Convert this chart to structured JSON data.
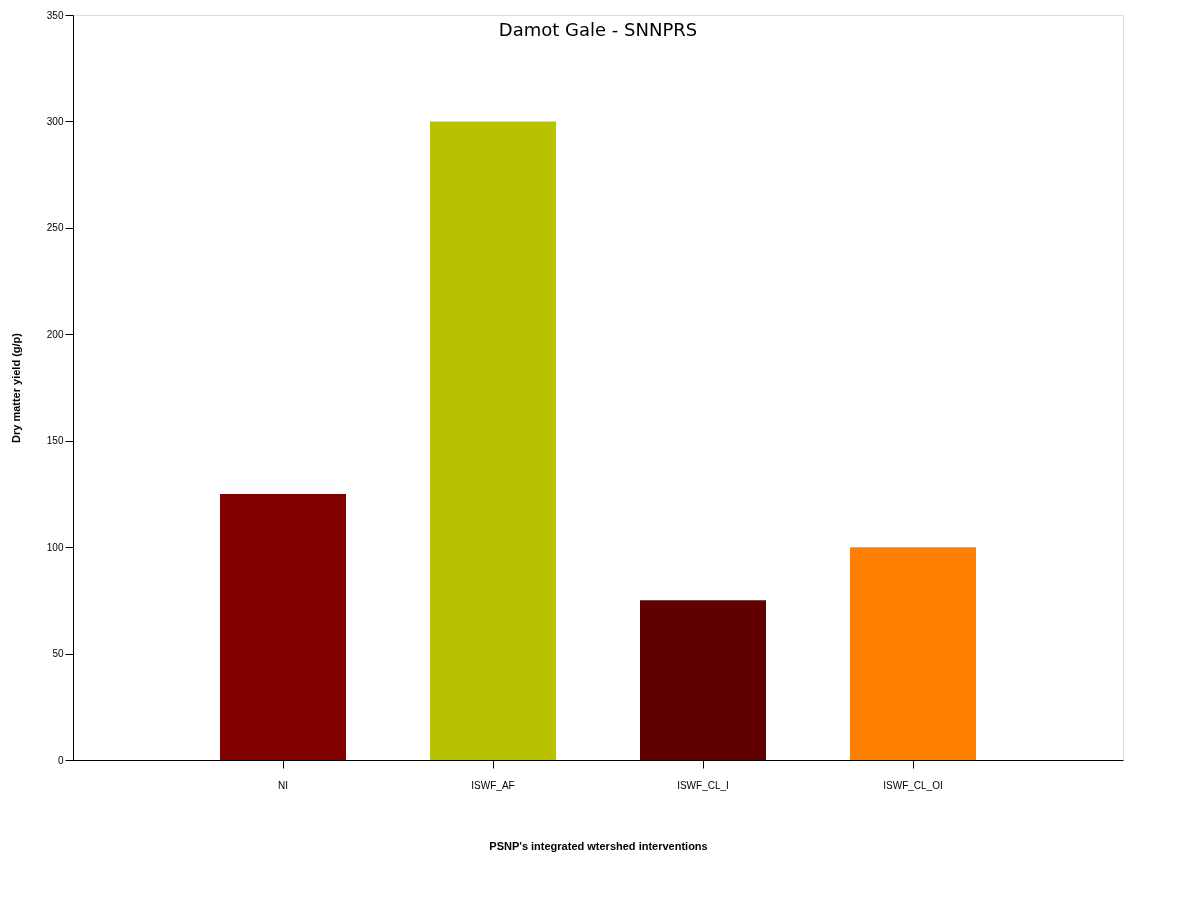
{
  "chart_data": {
    "type": "bar",
    "title": "Damot Gale - SNNPRS",
    "xlabel": "PSNP's integrated wtershed interventions",
    "ylabel": "Dry matter yield (g/p)",
    "categories": [
      "NI",
      "ISWF_AF",
      "ISWF_CL_I",
      "ISWF_CL_OI"
    ],
    "values": [
      125,
      300,
      75,
      100
    ],
    "colors": [
      "#800000",
      "#b8c200",
      "#600000",
      "#ff8000"
    ],
    "ylim": [
      0,
      350
    ],
    "yticks": [
      0,
      50,
      100,
      150,
      200,
      250,
      300,
      350
    ],
    "grid": false,
    "legend": false
  }
}
